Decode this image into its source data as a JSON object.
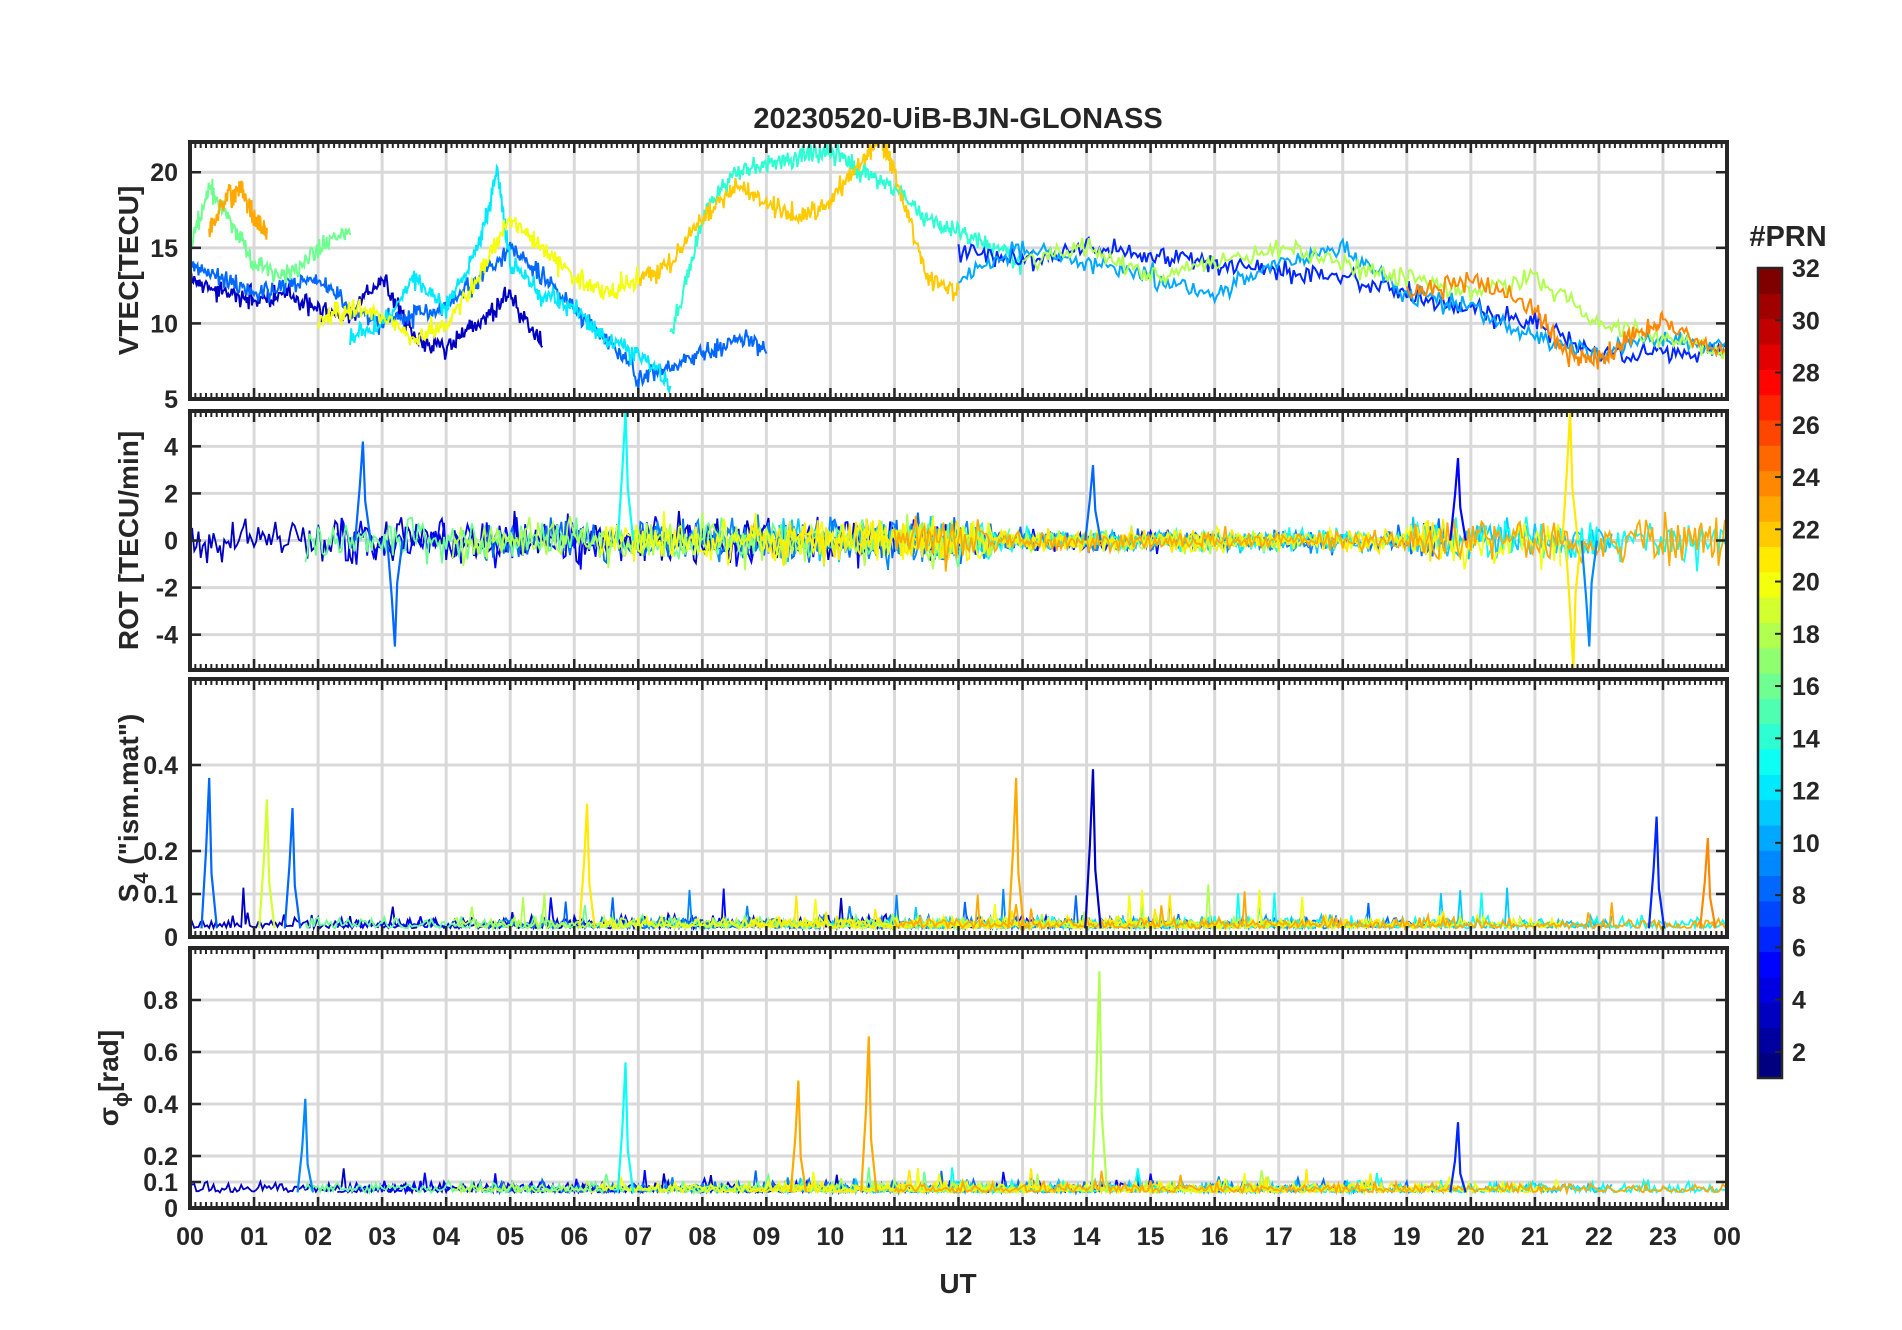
{
  "title": "20230520-UiB-BJN-GLONASS",
  "x_axis": {
    "label": "UT",
    "ticks": [
      "00",
      "01",
      "02",
      "03",
      "04",
      "05",
      "06",
      "07",
      "08",
      "09",
      "10",
      "11",
      "12",
      "13",
      "14",
      "15",
      "16",
      "17",
      "18",
      "19",
      "20",
      "21",
      "22",
      "23",
      "00"
    ]
  },
  "colorbar": {
    "label": "#PRN",
    "ticks": [
      "2",
      "4",
      "6",
      "8",
      "10",
      "12",
      "14",
      "16",
      "18",
      "20",
      "22",
      "24",
      "26",
      "28",
      "30",
      "32"
    ],
    "range": [
      1,
      32
    ],
    "colormap": "jet"
  },
  "panels": [
    {
      "ylabel": "VTEC[TECU]",
      "ylim": [
        5,
        22
      ],
      "yticks": [
        "5",
        "10",
        "15",
        "20"
      ]
    },
    {
      "ylabel": "ROT [TECU/min]",
      "ylim": [
        -5.5,
        5.5
      ],
      "yticks": [
        "-4",
        "-2",
        "0",
        "2",
        "4"
      ]
    },
    {
      "ylabel": "S",
      "ylabel_sub": "4",
      "ylabel_rest": " (\"ism.mat\")",
      "ylim": [
        0,
        0.6
      ],
      "yticks": [
        "0",
        "0.1",
        "0.2",
        "0.4"
      ]
    },
    {
      "ylabel": "σ",
      "ylabel_sub": "ϕ",
      "ylabel_rest": "[rad]",
      "ylim": [
        0,
        1.0
      ],
      "yticks": [
        "0",
        "0.1",
        "0.2",
        "0.4",
        "0.6",
        "0.8"
      ]
    }
  ],
  "chart_data": [
    {
      "type": "line",
      "title": "20230520-UiB-BJN-GLONASS",
      "xlabel": "UT",
      "ylabel": "VTEC[TECU]",
      "xlim": [
        0,
        24
      ],
      "ylim": [
        5,
        22
      ],
      "grid": true,
      "note": "many PRN traces colored by #PRN (1-32); representative approximate series",
      "series": [
        {
          "name": "PRN 3",
          "prn": 3,
          "x": [
            0,
            0.5,
            1,
            1.5,
            2,
            2.5,
            3,
            3.5,
            4,
            4.5,
            5,
            5.5
          ],
          "y": [
            13,
            12,
            11.5,
            12,
            11,
            10.5,
            13,
            9,
            8.5,
            10,
            12,
            8.5
          ]
        },
        {
          "name": "PRN 8",
          "prn": 8,
          "x": [
            0,
            0.5,
            1,
            1.5,
            2,
            2.5,
            3,
            3.5,
            4,
            4.5,
            5,
            5.5,
            6,
            6.5,
            7,
            7.5,
            8,
            8.5,
            9
          ],
          "y": [
            14,
            13,
            12,
            12.5,
            13,
            11,
            10,
            10.5,
            11,
            13,
            15,
            13,
            11,
            9,
            6.5,
            7,
            8,
            9,
            8.5
          ]
        },
        {
          "name": "PRN 12",
          "prn": 12,
          "x": [
            2.5,
            3,
            3.5,
            4,
            4.5,
            4.8,
            5,
            5.5,
            6,
            6.5,
            7,
            7.5
          ],
          "y": [
            9,
            10,
            13,
            11,
            15,
            20,
            14,
            12,
            11,
            9,
            8,
            6
          ]
        },
        {
          "name": "PRN 16",
          "prn": 16,
          "x": [
            0,
            0.3,
            0.6,
            1,
            1.5,
            2,
            2.5
          ],
          "y": [
            15,
            19,
            17,
            14,
            13,
            15,
            16
          ]
        },
        {
          "name": "PRN 14",
          "prn": 14,
          "x": [
            7.5,
            8,
            8.5,
            9,
            9.5,
            10,
            10.5,
            11,
            11.5,
            12,
            12.5,
            13
          ],
          "y": [
            9,
            17,
            20,
            20.5,
            21,
            21.5,
            20,
            19,
            17,
            16,
            15,
            14
          ]
        },
        {
          "name": "PRN 23",
          "prn": 23,
          "x": [
            0.3,
            0.5,
            0.8,
            1,
            1.2
          ],
          "y": [
            16,
            18,
            19,
            17,
            16
          ]
        },
        {
          "name": "PRN 22",
          "prn": 22,
          "x": [
            7,
            7.5,
            8,
            8.5,
            9,
            9.5,
            10,
            10.5,
            10.8,
            11,
            11.5,
            12
          ],
          "y": [
            13,
            14,
            17,
            19,
            18,
            17,
            18,
            21,
            22,
            20,
            13,
            12
          ]
        },
        {
          "name": "PRN 20",
          "prn": 20,
          "x": [
            2,
            2.5,
            3,
            3.5,
            4,
            4.5,
            5,
            5.5,
            6,
            6.5,
            7
          ],
          "y": [
            10,
            11,
            10.5,
            9,
            10,
            13,
            17,
            15,
            13,
            12,
            13
          ]
        },
        {
          "name": "PRN 6",
          "prn": 6,
          "x": [
            12,
            13,
            14,
            15,
            16,
            17,
            18,
            19,
            20,
            21,
            22,
            23,
            24
          ],
          "y": [
            15,
            14,
            15,
            14.5,
            14,
            13.5,
            13,
            12,
            11,
            10,
            8,
            8,
            8
          ]
        },
        {
          "name": "PRN 10",
          "prn": 10,
          "x": [
            12,
            13,
            14,
            15,
            16,
            17,
            18,
            19,
            20,
            21,
            22,
            23,
            24
          ],
          "y": [
            13,
            15,
            14,
            13,
            12,
            14,
            15,
            12,
            11,
            9,
            8,
            9,
            8.5
          ]
        },
        {
          "name": "PRN 18",
          "prn": 18,
          "x": [
            13,
            14,
            15,
            16,
            17,
            18,
            19,
            20,
            21,
            22,
            23,
            24
          ],
          "y": [
            14,
            15,
            13,
            14,
            15,
            14,
            13,
            12,
            13,
            10,
            9,
            8
          ]
        },
        {
          "name": "PRN 24",
          "prn": 24,
          "x": [
            19,
            20,
            21,
            21.5,
            22,
            22.5,
            23,
            24
          ],
          "y": [
            12,
            13,
            11,
            8,
            7.5,
            9,
            10,
            8
          ]
        }
      ]
    },
    {
      "type": "line",
      "xlabel": "UT",
      "ylabel": "ROT [TECU/min]",
      "xlim": [
        0,
        24
      ],
      "ylim": [
        -5.5,
        5.5
      ],
      "grid": true,
      "note": "noisy fluctuations around 0, mostly within ±2; notable spikes listed",
      "spikes": [
        {
          "x": 2.7,
          "y": 4.2,
          "prn": 8
        },
        {
          "x": 3.2,
          "y": -4.5,
          "prn": 8
        },
        {
          "x": 6.8,
          "y": 5.5,
          "prn": 13
        },
        {
          "x": 14.1,
          "y": 3.2,
          "prn": 8
        },
        {
          "x": 19.8,
          "y": 3.5,
          "prn": 5
        },
        {
          "x": 21.55,
          "y": 5.5,
          "prn": 21
        },
        {
          "x": 21.6,
          "y": -5.5,
          "prn": 21
        },
        {
          "x": 21.85,
          "y": -4.5,
          "prn": 9
        }
      ]
    },
    {
      "type": "line",
      "xlabel": "UT",
      "ylabel": "S4 (\"ism.mat\")",
      "xlim": [
        0,
        24
      ],
      "ylim": [
        0,
        0.6
      ],
      "grid": true,
      "note": "baseline below 0.05 with bursts; notable peaks listed",
      "peaks": [
        {
          "x": 0.3,
          "y": 0.37,
          "prn": 8
        },
        {
          "x": 1.2,
          "y": 0.32,
          "prn": 19
        },
        {
          "x": 1.6,
          "y": 0.3,
          "prn": 8
        },
        {
          "x": 6.2,
          "y": 0.31,
          "prn": 21
        },
        {
          "x": 12.9,
          "y": 0.37,
          "prn": 23
        },
        {
          "x": 14.1,
          "y": 0.39,
          "prn": 3
        },
        {
          "x": 22.9,
          "y": 0.28,
          "prn": 6
        },
        {
          "x": 23.7,
          "y": 0.23,
          "prn": 24
        }
      ]
    },
    {
      "type": "line",
      "xlabel": "UT",
      "ylabel": "σϕ[rad]",
      "xlim": [
        0,
        24
      ],
      "ylim": [
        0,
        1.0
      ],
      "grid": true,
      "note": "baseline around 0.05-0.1 with bursts; notable peaks listed",
      "peaks": [
        {
          "x": 1.8,
          "y": 0.42,
          "prn": 9
        },
        {
          "x": 6.8,
          "y": 0.56,
          "prn": 13
        },
        {
          "x": 9.5,
          "y": 0.49,
          "prn": 23
        },
        {
          "x": 10.6,
          "y": 0.66,
          "prn": 23
        },
        {
          "x": 14.2,
          "y": 0.91,
          "prn": 18
        },
        {
          "x": 19.8,
          "y": 0.33,
          "prn": 6
        }
      ]
    }
  ]
}
